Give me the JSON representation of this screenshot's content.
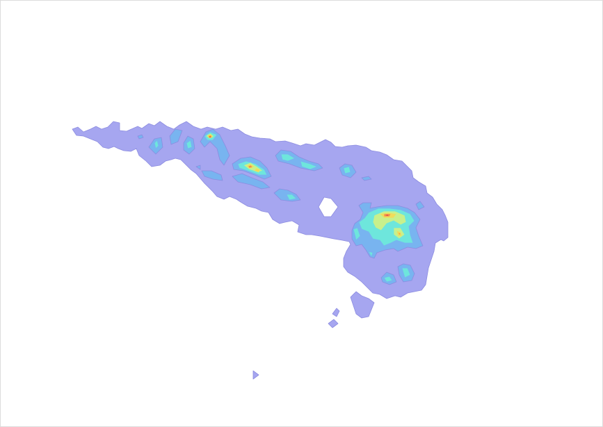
{
  "map": {
    "kind": "filled contour density map",
    "colors": {
      "background": "#ffffff",
      "level_1": "#a6a6f0",
      "level_1_edge": "#8c8ce0",
      "level_2": "#78b4f0",
      "level_3": "#6ee6dc",
      "level_4": "#c8f08c",
      "level_5": "#f0dc5a",
      "level_6": "#f08c50",
      "level_7": "#e63c3c"
    },
    "legend": null
  }
}
